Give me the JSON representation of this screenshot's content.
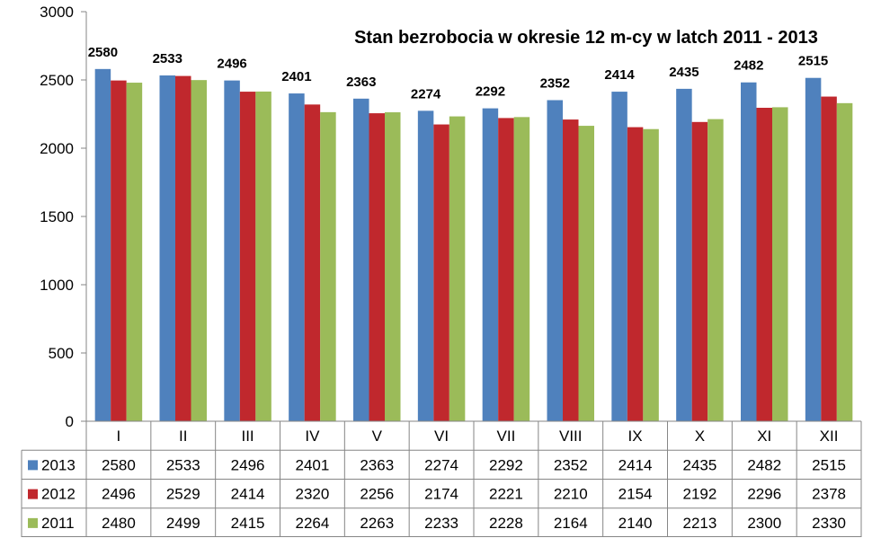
{
  "chart_data": {
    "type": "bar",
    "title": "Stan bezrobocia w okresie 12 m-cy w latch 2011 - 2013",
    "categories": [
      "I",
      "II",
      "III",
      "IV",
      "V",
      "VI",
      "VII",
      "VIII",
      "IX",
      "X",
      "XI",
      "XII"
    ],
    "series": [
      {
        "name": "2013",
        "color": "#4F81BD",
        "values": [
          2580,
          2533,
          2496,
          2401,
          2363,
          2274,
          2292,
          2352,
          2414,
          2435,
          2482,
          2515
        ]
      },
      {
        "name": "2012",
        "color": "#C0282D",
        "values": [
          2496,
          2529,
          2414,
          2320,
          2256,
          2174,
          2221,
          2210,
          2154,
          2192,
          2296,
          2378
        ]
      },
      {
        "name": "2011",
        "color": "#9BBB59",
        "values": [
          2480,
          2499,
          2415,
          2264,
          2263,
          2233,
          2228,
          2164,
          2140,
          2213,
          2300,
          2330
        ]
      }
    ],
    "ylim": [
      0,
      3000
    ],
    "yticks": [
      0,
      500,
      1000,
      1500,
      2000,
      2500,
      3000
    ],
    "data_labels_series": "2013",
    "grid": false,
    "legend": "data-table"
  }
}
